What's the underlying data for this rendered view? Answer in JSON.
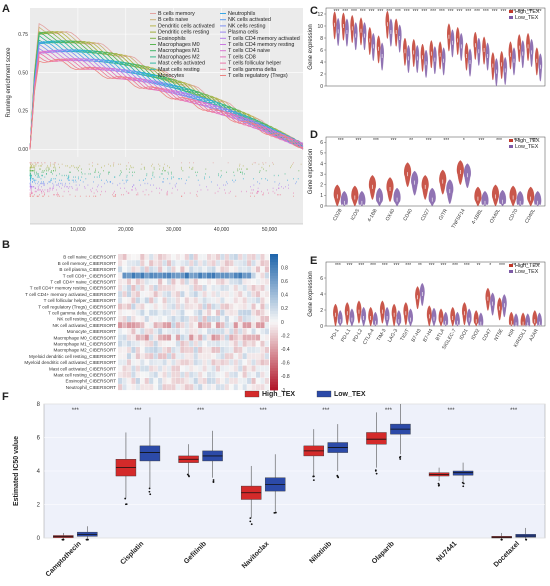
{
  "panels": {
    "A": {
      "label": "A"
    },
    "B": {
      "label": "B"
    },
    "C": {
      "label": "C"
    },
    "D": {
      "label": "D"
    },
    "E": {
      "label": "E"
    },
    "F": {
      "label": "F"
    }
  },
  "chart_data": [
    {
      "panel": "A",
      "type": "line",
      "title": "",
      "xlabel": "",
      "ylabel": "Running enrichment score",
      "xlim": [
        0,
        57000
      ],
      "ylim": [
        -0.05,
        0.92
      ],
      "xticks": [
        10000,
        20000,
        30000,
        40000,
        50000
      ],
      "xtick_labels": [
        "10,000",
        "20,000",
        "30,000",
        "40,000",
        "50,000"
      ],
      "yticks": [
        0.0,
        0.25,
        0.5,
        0.75
      ],
      "ytick_labels": [
        "0.00",
        "0.25",
        "0.50",
        "0.75"
      ],
      "grid": true,
      "legend_position": "top-center",
      "series": [
        {
          "name": "B cells memory",
          "color": "#e3a2a0",
          "peak": 0.8
        },
        {
          "name": "B cells naive",
          "color": "#cbb27a",
          "peak": 0.79
        },
        {
          "name": "Dendritic cells activated",
          "color": "#b7b54d",
          "peak": 0.78
        },
        {
          "name": "Dendritic cells resting",
          "color": "#9fae3a",
          "peak": 0.77
        },
        {
          "name": "Eosinophils",
          "color": "#7fb24a",
          "peak": 0.76
        },
        {
          "name": "Macrophages M0",
          "color": "#5ab552",
          "peak": 0.75
        },
        {
          "name": "Macrophages M1",
          "color": "#3fb566",
          "peak": 0.74
        },
        {
          "name": "Macrophages M2",
          "color": "#35b686",
          "peak": 0.73
        },
        {
          "name": "Mast cells activated",
          "color": "#2fb7a2",
          "peak": 0.72
        },
        {
          "name": "Mast cells resting",
          "color": "#2db5bd",
          "peak": 0.71
        },
        {
          "name": "Monocytes",
          "color": "#2fb0d4",
          "peak": 0.7
        },
        {
          "name": "Neutrophils",
          "color": "#38a7e6",
          "peak": 0.69
        },
        {
          "name": "NK cells activated",
          "color": "#5a9bef",
          "peak": 0.68
        },
        {
          "name": "NK cells resting",
          "color": "#7d8ff2",
          "peak": 0.67
        },
        {
          "name": "Plasma cells",
          "color": "#9b86f0",
          "peak": 0.66
        },
        {
          "name": "T cells CD4 memory activated",
          "color": "#b47feb",
          "peak": 0.65
        },
        {
          "name": "T cells CD4 memory resting",
          "color": "#c97ae0",
          "peak": 0.64
        },
        {
          "name": "T cells CD4 naive",
          "color": "#d875d1",
          "peak": 0.63
        },
        {
          "name": "T cells CD8",
          "color": "#e373be",
          "peak": 0.62
        },
        {
          "name": "T cells follicular helper",
          "color": "#eb75aa",
          "peak": 0.61
        },
        {
          "name": "T cells gamma delta",
          "color": "#ee7c96",
          "peak": 0.6
        },
        {
          "name": "T cells regulatory (Tregs)",
          "color": "#ec8482",
          "peak": 0.59
        }
      ]
    },
    {
      "panel": "B",
      "type": "heatmap",
      "title": "",
      "rows": [
        "B cell naive_CIBERSORT",
        "B cell memory_CIBERSORT",
        "B cell plasma_CIBERSORT",
        "T cell CD8+_CIBERSORT",
        "T cell CD4+ naive_CIBERSORT",
        "T cell CD4+ memory resting_CIBERSORT",
        "T cell CD4+ memory activated_CIBERSORT",
        "T cell follicular helper_CIBERSORT",
        "T cell regulatory (Tregs)_CIBERSORT",
        "T cell gamma delta_CIBERSORT",
        "NK cell resting_CIBERSORT",
        "NK cell activated_CIBERSORT",
        "Monocyte_CIBERSORT",
        "Macrophage M0_CIBERSORT",
        "Macrophage M1_CIBERSORT",
        "Macrophage M2_CIBERSORT",
        "Myeloid dendritic cell resting_CIBERSORT",
        "Myeloid dendritic cell activated_CIBERSORT",
        "Mast cell activated_CIBERSORT",
        "Mast cell resting_CIBERSORT",
        "Eosinophil_CIBERSORT",
        "Neutrophil_CIBERSORT"
      ],
      "columns": [
        "",
        "",
        "",
        "",
        "",
        "",
        "",
        "",
        "",
        "",
        "",
        "",
        "",
        "",
        "",
        "",
        "",
        "",
        "",
        "",
        "",
        "",
        "",
        "",
        "",
        "",
        "",
        "",
        "",
        "",
        "",
        "",
        "",
        ""
      ],
      "colorbar_ticks": [
        0.8,
        0.6,
        0.4,
        0.2,
        0,
        -0.2,
        -0.4,
        -0.6,
        -0.8,
        -1
      ],
      "colorbar_tick_labels": [
        "0.8",
        "0.6",
        "0.4",
        "0.2",
        "0",
        "-0.2",
        "-0.4",
        "-0.6",
        "-0.8",
        "-1"
      ],
      "zlim": [
        -1,
        1
      ],
      "colors": {
        "high": "#2166ac",
        "mid": "#f7f7f7",
        "low": "#b2182b"
      }
    },
    {
      "panel": "C",
      "type": "violin",
      "title": "",
      "xlabel": "",
      "ylabel": "Gene expression",
      "ylim": [
        0,
        13
      ],
      "yticks": [
        0,
        2,
        4,
        6,
        8,
        10,
        12
      ],
      "ytick_labels": [
        "0",
        "2",
        "4",
        "6",
        "8",
        "10",
        "12"
      ],
      "legend_position": "top-right",
      "groups": [
        {
          "name": "High_TEX",
          "color": "#c0392b"
        },
        {
          "name": "Low_TEX",
          "color": "#7d5ba6"
        }
      ],
      "categories": [
        "",
        "",
        "",
        "",
        "",
        "",
        "",
        "",
        "",
        "",
        "",
        "",
        "",
        "",
        "",
        "",
        "",
        "",
        "",
        "",
        "",
        "",
        "",
        ""
      ],
      "high_median": [
        10.2,
        10.0,
        9.6,
        9.2,
        7.6,
        6.2,
        10.3,
        9.0,
        5.8,
        5.6,
        4.8,
        5.4,
        5.2,
        8.2,
        7.6,
        5.0,
        6.8,
        6.0,
        3.4,
        3.6,
        5.2,
        6.4,
        6.6,
        4.2
      ],
      "low_median": [
        9.1,
        9.0,
        8.4,
        8.4,
        6.6,
        5.0,
        9.0,
        8.0,
        4.6,
        4.6,
        3.8,
        4.4,
        4.2,
        7.2,
        6.6,
        4.0,
        5.8,
        5.0,
        2.4,
        2.6,
        4.2,
        5.4,
        5.6,
        3.2
      ],
      "significance": [
        "***",
        "***",
        "***",
        "***",
        "***",
        "***",
        "***",
        "***",
        "***",
        "***",
        "***",
        "***",
        "***",
        "***",
        "***",
        "***",
        "***",
        "***",
        "***",
        "***",
        "***",
        "***",
        "***",
        "***"
      ]
    },
    {
      "panel": "D",
      "type": "violin",
      "title": "",
      "xlabel": "",
      "ylabel": "Gene expression",
      "ylim": [
        0,
        6.5
      ],
      "yticks": [
        0,
        1,
        2,
        3,
        4,
        5,
        6
      ],
      "ytick_labels": [
        "0",
        "1",
        "2",
        "3",
        "4",
        "5",
        "6"
      ],
      "legend_position": "top-right",
      "groups": [
        {
          "name": "High_TEX",
          "color": "#c0392b"
        },
        {
          "name": "Low_TEX",
          "color": "#7d5ba6"
        }
      ],
      "categories": [
        "CD28",
        "ICOS",
        "4-1BB",
        "OX40",
        "CD40",
        "CD27",
        "GITR",
        "TNFSF14",
        "4-1BBL",
        "OX40L",
        "CD70",
        "CD40L"
      ],
      "high_median": [
        0.9,
        0.8,
        1.8,
        1.6,
        3.0,
        1.8,
        2.3,
        3.2,
        0.7,
        0.9,
        0.8,
        0.7
      ],
      "low_median": [
        0.3,
        0.3,
        0.6,
        0.6,
        2.2,
        0.6,
        1.4,
        2.9,
        0.3,
        0.4,
        0.3,
        0.3
      ],
      "significance": [
        "***",
        "***",
        "***",
        "***",
        "**",
        "***",
        "***",
        "*",
        "***",
        "***",
        "***",
        "***"
      ]
    },
    {
      "panel": "E",
      "type": "violin",
      "title": "",
      "xlabel": "",
      "ylabel": "Gene expression",
      "ylim": [
        0,
        8
      ],
      "yticks": [
        0,
        2,
        4,
        6
      ],
      "ytick_labels": [
        "0",
        "2",
        "4",
        "6"
      ],
      "legend_position": "top-right",
      "groups": [
        {
          "name": "High_TEX",
          "color": "#c0392b"
        },
        {
          "name": "Low_TEX",
          "color": "#7d5ba6"
        }
      ],
      "categories": [
        "PD-1",
        "PD-L1",
        "PD-L2",
        "CTLA-4",
        "TIM-3",
        "LAG-3",
        "TIGIT",
        "B7-H3",
        "B7-H4",
        "BTLA",
        "SIGLEC-7",
        "IDO1",
        "IDO2",
        "CD47",
        "NT5E",
        "KIR",
        "KIR2DL1",
        "A2AR"
      ],
      "high_median": [
        1.4,
        1.6,
        1.8,
        1.0,
        1.8,
        1.4,
        1.6,
        3.6,
        1.2,
        0.8,
        1.0,
        1.6,
        0.6,
        3.4,
        2.2,
        0.4,
        0.3,
        0.6
      ],
      "low_median": [
        0.6,
        0.8,
        1.0,
        0.4,
        1.0,
        0.6,
        0.8,
        4.0,
        0.9,
        0.4,
        0.4,
        0.8,
        0.3,
        2.8,
        2.6,
        0.2,
        0.2,
        0.3
      ],
      "significance": [
        "***",
        "***",
        "***",
        "***",
        "***",
        "***",
        "***",
        "**",
        "***",
        "***",
        "***",
        "***",
        "**",
        "*",
        "***",
        "**",
        "***",
        "***"
      ]
    },
    {
      "panel": "F",
      "type": "box",
      "title": "",
      "xlabel": "",
      "ylabel": "Estimated IC50 value",
      "ylim": [
        0,
        8
      ],
      "yticks": [
        0,
        2,
        4,
        6,
        8
      ],
      "ytick_labels": [
        "0",
        "2",
        "4",
        "6",
        "8"
      ],
      "legend_position": "top-center",
      "groups": [
        {
          "name": "High_TEX",
          "color": "#d42a2a"
        },
        {
          "name": "Low_TEX",
          "color": "#2c4aa8"
        }
      ],
      "categories": [
        "Camptothecin",
        "Cisplatin",
        "Gefitinib",
        "Navitoclax",
        "Nilotinib",
        "Olaparib",
        "NU7441",
        "Docetaxel"
      ],
      "high_box": [
        {
          "min": -0.1,
          "q1": 0.02,
          "median": 0.08,
          "q3": 0.15,
          "max": 0.3
        },
        {
          "min": 2.4,
          "q1": 3.7,
          "median": 4.2,
          "q3": 4.7,
          "max": 6.3
        },
        {
          "min": 3.8,
          "q1": 4.5,
          "median": 4.7,
          "q3": 4.9,
          "max": 5.6
        },
        {
          "min": 1.2,
          "q1": 2.3,
          "median": 2.7,
          "q3": 3.1,
          "max": 4.3
        },
        {
          "min": 3.7,
          "q1": 4.9,
          "median": 5.2,
          "q3": 5.5,
          "max": 6.5
        },
        {
          "min": 4.2,
          "q1": 5.6,
          "median": 5.9,
          "q3": 6.3,
          "max": 7.5
        },
        {
          "min": 3.4,
          "q1": 3.7,
          "median": 3.8,
          "q3": 3.9,
          "max": 4.2
        },
        {
          "min": -0.1,
          "q1": 0.0,
          "median": 0.05,
          "q3": 0.1,
          "max": 0.3
        }
      ],
      "low_box": [
        {
          "min": -0.1,
          "q1": 0.1,
          "median": 0.2,
          "q3": 0.35,
          "max": 0.7
        },
        {
          "min": 3.0,
          "q1": 4.6,
          "median": 5.1,
          "q3": 5.5,
          "max": 7.2
        },
        {
          "min": 3.6,
          "q1": 4.6,
          "median": 4.9,
          "q3": 5.2,
          "max": 6.4
        },
        {
          "min": 1.6,
          "q1": 2.8,
          "median": 3.2,
          "q3": 3.6,
          "max": 5.0
        },
        {
          "min": 4.0,
          "q1": 5.1,
          "median": 5.4,
          "q3": 5.7,
          "max": 6.8
        },
        {
          "min": 5.0,
          "q1": 6.2,
          "median": 6.5,
          "q3": 6.8,
          "max": 8.0
        },
        {
          "min": 3.3,
          "q1": 3.75,
          "median": 3.9,
          "q3": 4.0,
          "max": 4.5
        },
        {
          "min": -0.1,
          "q1": 0.05,
          "median": 0.12,
          "q3": 0.22,
          "max": 0.6
        }
      ],
      "significance": [
        "***",
        "***",
        "***",
        "***",
        "***",
        "***",
        "***",
        "***"
      ]
    }
  ]
}
